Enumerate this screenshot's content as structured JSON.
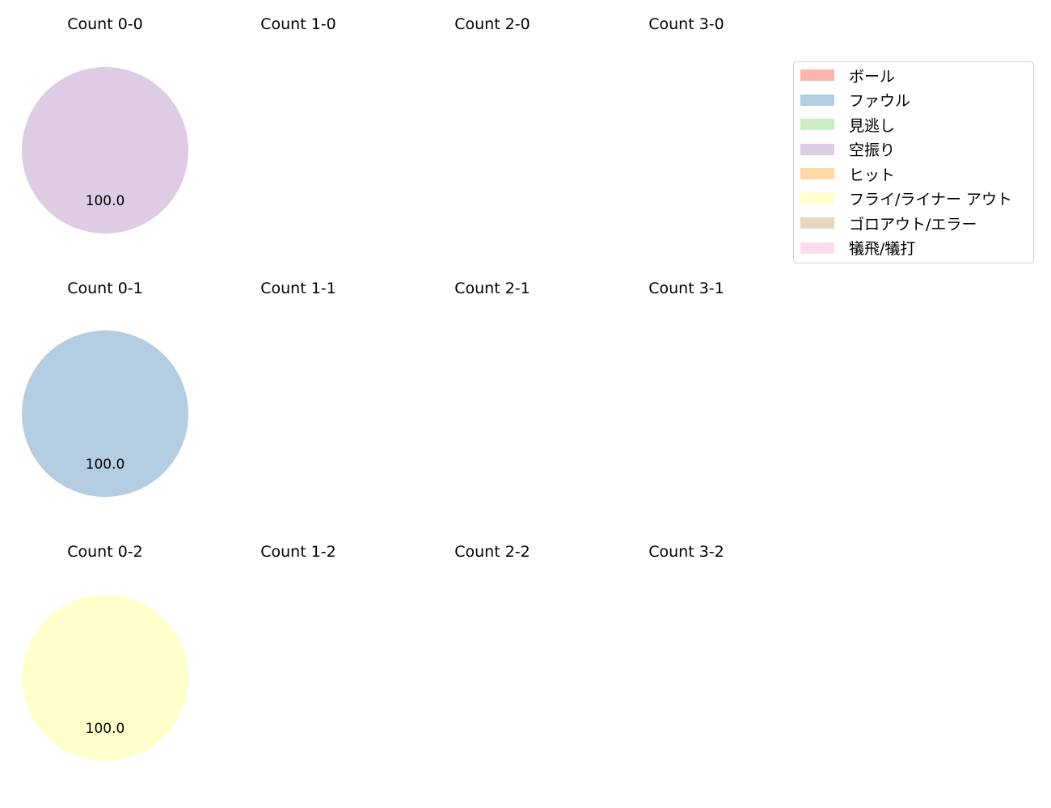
{
  "chart_data": [
    {
      "type": "pie",
      "title": "Count 0-0",
      "slices": [
        {
          "category": "空振り",
          "value": 100.0
        }
      ],
      "labels": [
        "100.0"
      ]
    },
    {
      "type": "pie",
      "title": "Count 1-0",
      "slices": []
    },
    {
      "type": "pie",
      "title": "Count 2-0",
      "slices": []
    },
    {
      "type": "pie",
      "title": "Count 3-0",
      "slices": []
    },
    {
      "type": "pie",
      "title": "Count 0-1",
      "slices": [
        {
          "category": "ファウル",
          "value": 100.0
        }
      ],
      "labels": [
        "100.0"
      ]
    },
    {
      "type": "pie",
      "title": "Count 1-1",
      "slices": []
    },
    {
      "type": "pie",
      "title": "Count 2-1",
      "slices": []
    },
    {
      "type": "pie",
      "title": "Count 3-1",
      "slices": []
    },
    {
      "type": "pie",
      "title": "Count 0-2",
      "slices": [
        {
          "category": "フライ/ライナー アウト",
          "value": 100.0
        }
      ],
      "labels": [
        "100.0"
      ]
    },
    {
      "type": "pie",
      "title": "Count 1-2",
      "slices": []
    },
    {
      "type": "pie",
      "title": "Count 2-2",
      "slices": []
    },
    {
      "type": "pie",
      "title": "Count 3-2",
      "slices": []
    }
  ],
  "legend": {
    "placement": "top-right",
    "items": [
      {
        "label": "ボール",
        "color": "#fbb4ae"
      },
      {
        "label": "ファウル",
        "color": "#b3cde3"
      },
      {
        "label": "見逃し",
        "color": "#ccebc5"
      },
      {
        "label": "空振り",
        "color": "#decbe4"
      },
      {
        "label": "ヒット",
        "color": "#fed9a6"
      },
      {
        "label": "フライ/ライナー アウト",
        "color": "#ffffcc"
      },
      {
        "label": "ゴロアウト/エラー",
        "color": "#e5d8bd"
      },
      {
        "label": "犠飛/犠打",
        "color": "#fddaec"
      }
    ]
  }
}
